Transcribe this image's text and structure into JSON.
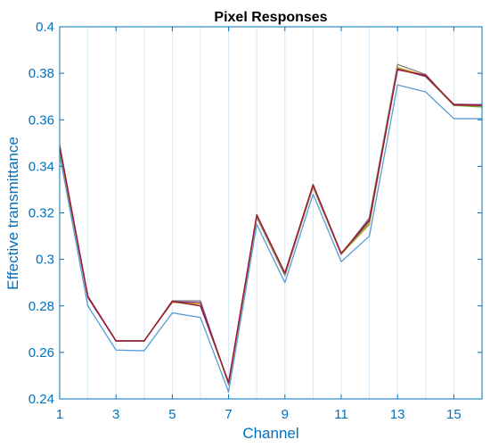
{
  "chart_data": {
    "type": "line",
    "title": "Pixel Responses",
    "xlabel": "Channel",
    "ylabel": "Effective transmittance",
    "xlim": [
      1,
      16
    ],
    "ylim": [
      0.24,
      0.4
    ],
    "xticks": [
      1,
      3,
      5,
      7,
      9,
      11,
      13,
      15
    ],
    "xtick_labels": [
      "1",
      "3",
      "5",
      "7",
      "9",
      "11",
      "13",
      "15"
    ],
    "yticks": [
      0.24,
      0.26,
      0.28,
      0.3,
      0.32,
      0.34,
      0.36,
      0.38,
      0.4
    ],
    "ytick_labels": [
      "0.24",
      "0.26",
      "0.28",
      "0.3",
      "0.32",
      "0.34",
      "0.36",
      "0.38",
      "0.4"
    ],
    "grid": {
      "x": true,
      "y": false
    },
    "x": [
      1,
      2,
      3,
      4,
      5,
      6,
      7,
      8,
      9,
      10,
      11,
      12,
      13,
      14,
      15,
      16
    ],
    "series": [
      {
        "color": "#5b9bd5",
        "values": [
          0.345,
          0.28,
          0.261,
          0.2607,
          0.277,
          0.275,
          0.243,
          0.315,
          0.29,
          0.328,
          0.299,
          0.31,
          0.375,
          0.372,
          0.3605,
          0.3605
        ]
      },
      {
        "color": "#808080",
        "values": [
          0.347,
          0.2835,
          0.2648,
          0.2648,
          0.2822,
          0.2822,
          0.246,
          0.318,
          0.293,
          0.331,
          0.302,
          0.318,
          0.3838,
          0.3795,
          0.3662,
          0.366
        ]
      },
      {
        "color": "#d4a017",
        "values": [
          0.3472,
          0.2838,
          0.265,
          0.265,
          0.2815,
          0.2808,
          0.2463,
          0.3185,
          0.2934,
          0.3314,
          0.3022,
          0.315,
          0.3825,
          0.379,
          0.3666,
          0.3663
        ]
      },
      {
        "color": "#77ac30",
        "values": [
          0.3475,
          0.284,
          0.265,
          0.265,
          0.2818,
          0.28,
          0.2466,
          0.3188,
          0.2937,
          0.3316,
          0.3024,
          0.3155,
          0.382,
          0.3785,
          0.3662,
          0.3655
        ]
      },
      {
        "color": "#7e2f8e",
        "values": [
          0.3485,
          0.2838,
          0.2649,
          0.2649,
          0.2818,
          0.2815,
          0.2468,
          0.319,
          0.294,
          0.332,
          0.3025,
          0.3165,
          0.3818,
          0.3787,
          0.3667,
          0.3665
        ]
      },
      {
        "color": "#a2142f",
        "values": [
          0.349,
          0.2842,
          0.265,
          0.265,
          0.282,
          0.28,
          0.2472,
          0.3192,
          0.2942,
          0.3322,
          0.3026,
          0.317,
          0.3815,
          0.3792,
          0.3664,
          0.3662
        ]
      }
    ],
    "colors": {
      "axis": "#0072bd",
      "tick_label": "#0072bd",
      "axis_label": "#0072bd",
      "grid": "#d6e9f8",
      "title": "#000000"
    }
  }
}
